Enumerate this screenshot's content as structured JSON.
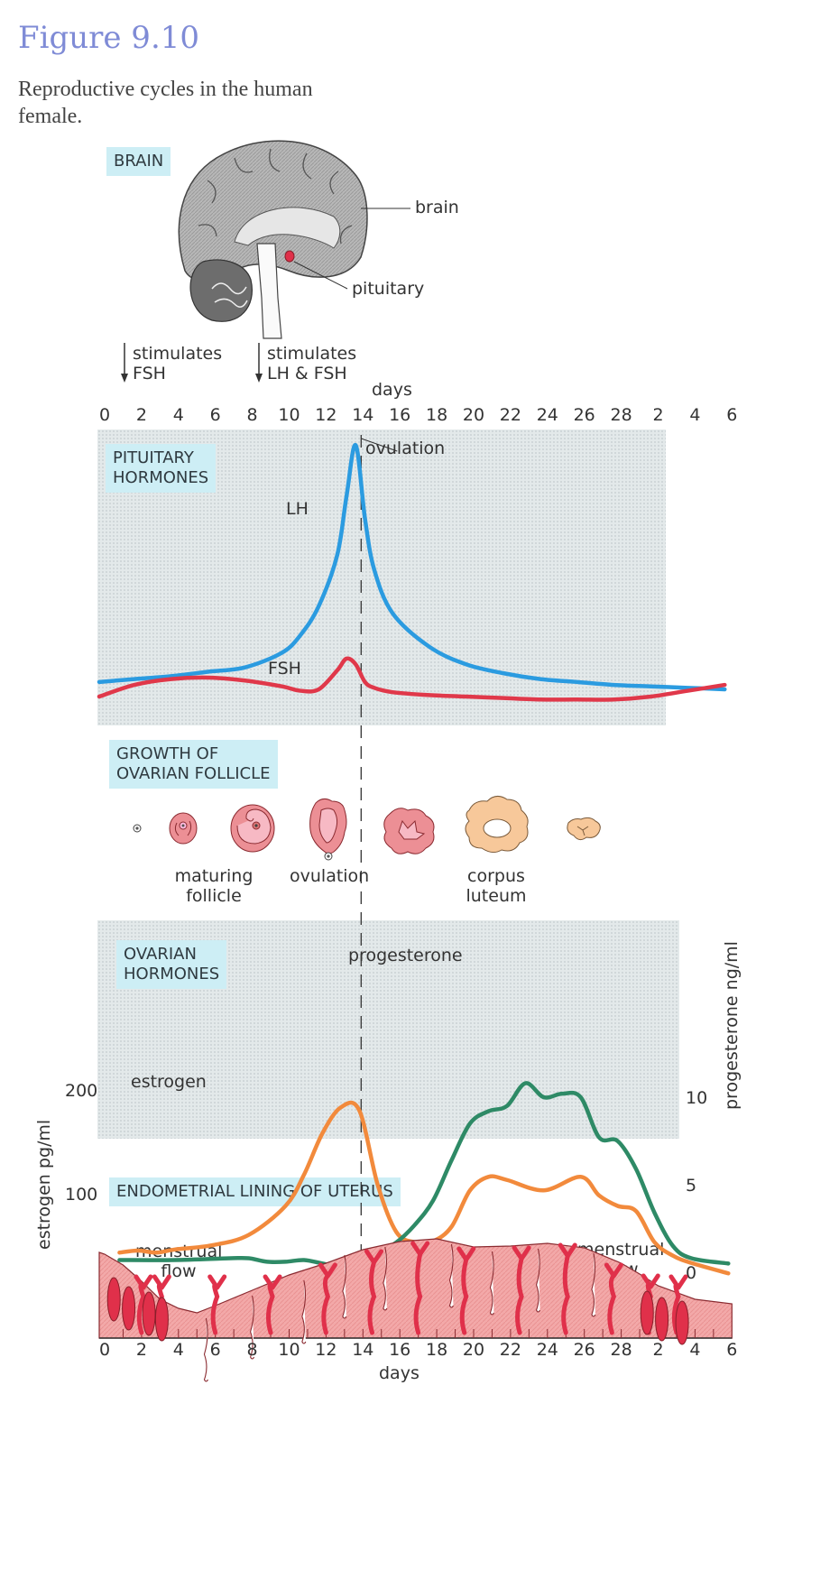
{
  "figure": {
    "title": "Figure 9.10",
    "caption": "Reproductive cycles in the human female."
  },
  "brain_section": {
    "label": "BRAIN",
    "callouts": {
      "brain": "brain",
      "pituitary": "pituitary"
    },
    "arrows": [
      {
        "text_line1": "stimulates",
        "text_line2": "FSH",
        "day": 2
      },
      {
        "text_line1": "stimulates",
        "text_line2": "LH & FSH",
        "day": 10
      }
    ]
  },
  "day_axis": {
    "title": "days",
    "ticks": [
      "0",
      "2",
      "4",
      "6",
      "8",
      "10",
      "12",
      "14",
      "16",
      "18",
      "20",
      "22",
      "24",
      "26",
      "28",
      "2",
      "4",
      "6"
    ]
  },
  "pituitary_panel": {
    "label_line1": "PITUITARY",
    "label_line2": "HORMONES",
    "ovulation_label": "ovulation",
    "series_labels": {
      "lh": "LH",
      "fsh": "FSH"
    }
  },
  "follicle_panel": {
    "label_line1": "GROWTH OF",
    "label_line2": "OVARIAN FOLLICLE",
    "captions": {
      "maturing_line1": "maturing",
      "maturing_line2": "follicle",
      "ovulation": "ovulation",
      "corpus_line1": "corpus",
      "corpus_line2": "luteum"
    }
  },
  "ovarian_panel": {
    "label_line1": "OVARIAN",
    "label_line2": "HORMONES",
    "series_labels": {
      "estrogen": "estrogen",
      "progesterone": "progesterone"
    }
  },
  "uterus_panel": {
    "label": "ENDOMETRIAL LINING OF UTERUS",
    "left_caption_line1": "menstrual",
    "left_caption_line2": "flow",
    "right_caption_line1": "menstrual",
    "right_caption_line2": "flow"
  },
  "colors": {
    "lh": "#2b9be0",
    "fsh": "#e0384a",
    "estrogen": "#f28a3c",
    "progesterone": "#2e8a66",
    "label_box": "#cdeef5",
    "title": "#7f8bd6",
    "endometrium": "#f2a6a6",
    "vessels": "#e0304a"
  },
  "chart_data": [
    {
      "type": "line",
      "title": "PITUITARY HORMONES",
      "xlabel": "days",
      "ylabel": "",
      "x_note": "cycle day; days 0-28 then next cycle days 2,4,6 (continuous 0-34)",
      "x": [
        0,
        2,
        4,
        6,
        8,
        10,
        11,
        12,
        13,
        13.5,
        14,
        14.5,
        15,
        16,
        18,
        20,
        22,
        24,
        26,
        28,
        30,
        32,
        34
      ],
      "series": [
        {
          "name": "LH",
          "units": "relative",
          "values": [
            18,
            20,
            22,
            25,
            28,
            38,
            50,
            70,
            105,
            145,
            180,
            130,
            95,
            65,
            42,
            30,
            24,
            20,
            18,
            16,
            15,
            14,
            13
          ]
        },
        {
          "name": "FSH",
          "units": "relative",
          "values": [
            8,
            16,
            20,
            21,
            19,
            15,
            12,
            13,
            26,
            34,
            30,
            18,
            14,
            11,
            9,
            8,
            7,
            6,
            6,
            6,
            8,
            12,
            16
          ]
        }
      ],
      "annotations": [
        {
          "text": "ovulation",
          "day": 14
        }
      ]
    },
    {
      "type": "line",
      "title": "OVARIAN HORMONES",
      "xlabel": "days",
      "x_note": "cycle day; continuous 0-34",
      "y_left": {
        "label": "estrogen pg/ml",
        "ticks": [
          100,
          200
        ],
        "range": [
          0,
          250
        ]
      },
      "y_right": {
        "label": "progesterone ng/ml",
        "ticks": [
          0,
          5,
          10
        ],
        "range": [
          0,
          12.5
        ]
      },
      "series": [
        {
          "name": "estrogen",
          "axis": "left",
          "units": "pg/ml",
          "x": [
            1,
            2,
            3,
            4,
            6,
            8,
            10,
            11,
            12,
            13,
            14,
            15,
            16,
            17,
            18,
            19,
            20,
            21,
            22,
            24,
            26,
            27,
            28,
            29,
            30,
            31,
            32,
            34
          ],
          "values": [
            45,
            47,
            45,
            48,
            52,
            62,
            90,
            120,
            160,
            185,
            182,
            110,
            65,
            55,
            56,
            70,
            105,
            118,
            115,
            105,
            118,
            100,
            90,
            85,
            55,
            42,
            35,
            25
          ]
        },
        {
          "name": "progesterone",
          "axis": "right",
          "units": "ng/ml",
          "x": [
            1,
            4,
            7,
            8,
            9,
            10,
            11,
            12,
            13,
            14,
            15,
            16,
            17,
            18,
            19,
            20,
            21,
            22,
            23,
            24,
            25,
            26,
            27,
            28,
            29,
            30,
            31,
            32,
            34
          ],
          "values": [
            0.8,
            0.8,
            0.9,
            0.9,
            0.7,
            0.7,
            0.8,
            0.6,
            0.4,
            0.8,
            1.2,
            1.8,
            2.8,
            4.2,
            6.5,
            8.6,
            9.3,
            9.6,
            10.9,
            10.1,
            10.3,
            10.1,
            7.8,
            7.6,
            6.0,
            3.5,
            1.6,
            0.9,
            0.6
          ]
        }
      ]
    }
  ]
}
